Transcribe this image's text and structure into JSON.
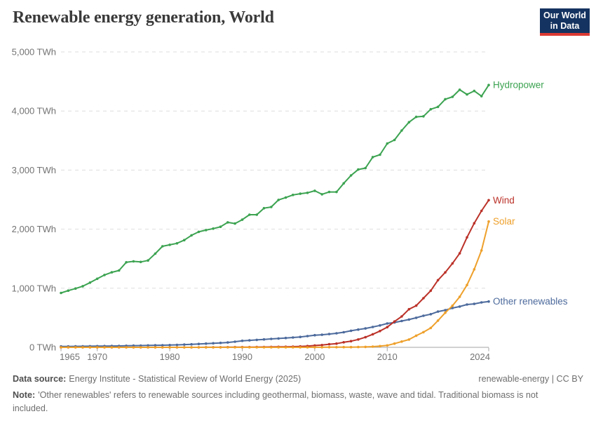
{
  "header": {
    "title": "Renewable energy generation, World",
    "logo": {
      "line1": "Our World",
      "line2": "in Data",
      "bg_color": "#153360",
      "accent_color": "#dc3a33"
    }
  },
  "chart_data": {
    "type": "line",
    "title": "Renewable energy generation, World",
    "xlabel": "",
    "ylabel": "",
    "y_unit": "TWh",
    "xlim": [
      1965,
      2024
    ],
    "ylim": [
      0,
      5000
    ],
    "xticks": [
      1965,
      1970,
      1980,
      1990,
      2000,
      2010,
      2024
    ],
    "yticks": [
      0,
      1000,
      2000,
      3000,
      4000,
      5000
    ],
    "grid": "horizontal-dashed",
    "legend_position": "line-end-labels",
    "x": [
      1965,
      1966,
      1967,
      1968,
      1969,
      1970,
      1971,
      1972,
      1973,
      1974,
      1975,
      1976,
      1977,
      1978,
      1979,
      1980,
      1981,
      1982,
      1983,
      1984,
      1985,
      1986,
      1987,
      1988,
      1989,
      1990,
      1991,
      1992,
      1993,
      1994,
      1995,
      1996,
      1997,
      1998,
      1999,
      2000,
      2001,
      2002,
      2003,
      2004,
      2005,
      2006,
      2007,
      2008,
      2009,
      2010,
      2011,
      2012,
      2013,
      2014,
      2015,
      2016,
      2017,
      2018,
      2019,
      2020,
      2021,
      2022,
      2023,
      2024
    ],
    "series": [
      {
        "name": "Hydropower",
        "color": "#3ca351",
        "values": [
          920,
          960,
          995,
          1035,
          1095,
          1160,
          1225,
          1270,
          1300,
          1440,
          1455,
          1445,
          1470,
          1585,
          1710,
          1735,
          1760,
          1815,
          1895,
          1955,
          1985,
          2010,
          2040,
          2115,
          2095,
          2160,
          2245,
          2245,
          2355,
          2375,
          2495,
          2535,
          2580,
          2600,
          2615,
          2650,
          2590,
          2630,
          2630,
          2775,
          2910,
          3010,
          3035,
          3220,
          3260,
          3450,
          3510,
          3670,
          3810,
          3900,
          3910,
          4030,
          4070,
          4200,
          4240,
          4360,
          4280,
          4340,
          4250,
          4440
        ]
      },
      {
        "name": "Wind",
        "color": "#bb3229",
        "values": [
          0,
          0,
          0,
          0,
          0,
          0,
          0,
          0,
          0,
          0,
          0,
          0,
          0,
          0,
          0,
          0,
          0,
          0,
          0,
          0,
          1,
          1,
          1,
          2,
          3,
          4,
          4,
          5,
          6,
          7,
          8,
          9,
          12,
          16,
          21,
          31,
          38,
          52,
          63,
          85,
          104,
          133,
          171,
          221,
          276,
          342,
          437,
          523,
          645,
          706,
          831,
          958,
          1136,
          1269,
          1420,
          1590,
          1861,
          2100,
          2310,
          2490
        ]
      },
      {
        "name": "Solar",
        "color": "#eea02b",
        "values": [
          0,
          0,
          0,
          0,
          0,
          0,
          0,
          0,
          0,
          0,
          0,
          0,
          0,
          0,
          0,
          0,
          0,
          0,
          0,
          0,
          0,
          0,
          0,
          0,
          0,
          0,
          0,
          0,
          0,
          0,
          0,
          0,
          0,
          0,
          0,
          1,
          1,
          2,
          2,
          3,
          4,
          5,
          7,
          12,
          20,
          32,
          63,
          97,
          132,
          197,
          256,
          328,
          453,
          585,
          704,
          855,
          1055,
          1320,
          1640,
          2130
        ]
      },
      {
        "name": "Other renewables",
        "color": "#4c6a9c",
        "values": [
          15,
          16,
          17,
          18,
          19,
          20,
          21,
          23,
          24,
          26,
          28,
          30,
          32,
          34,
          36,
          38,
          42,
          46,
          51,
          57,
          63,
          69,
          75,
          82,
          95,
          110,
          118,
          126,
          134,
          142,
          150,
          158,
          166,
          176,
          190,
          205,
          212,
          225,
          238,
          255,
          280,
          300,
          320,
          345,
          370,
          404,
          420,
          445,
          470,
          500,
          535,
          560,
          605,
          630,
          665,
          690,
          725,
          735,
          760,
          775
        ]
      }
    ]
  },
  "footer": {
    "source_label": "Data source:",
    "source_text": "Energy Institute - Statistical Review of World Energy (2025)",
    "slug": "renewable-energy",
    "separator": "|",
    "license": "CC BY",
    "note_label": "Note:",
    "note_text": "'Other renewables' refers to renewable sources including geothermal, biomass, waste, wave and tidal. Traditional biomass is not included."
  }
}
